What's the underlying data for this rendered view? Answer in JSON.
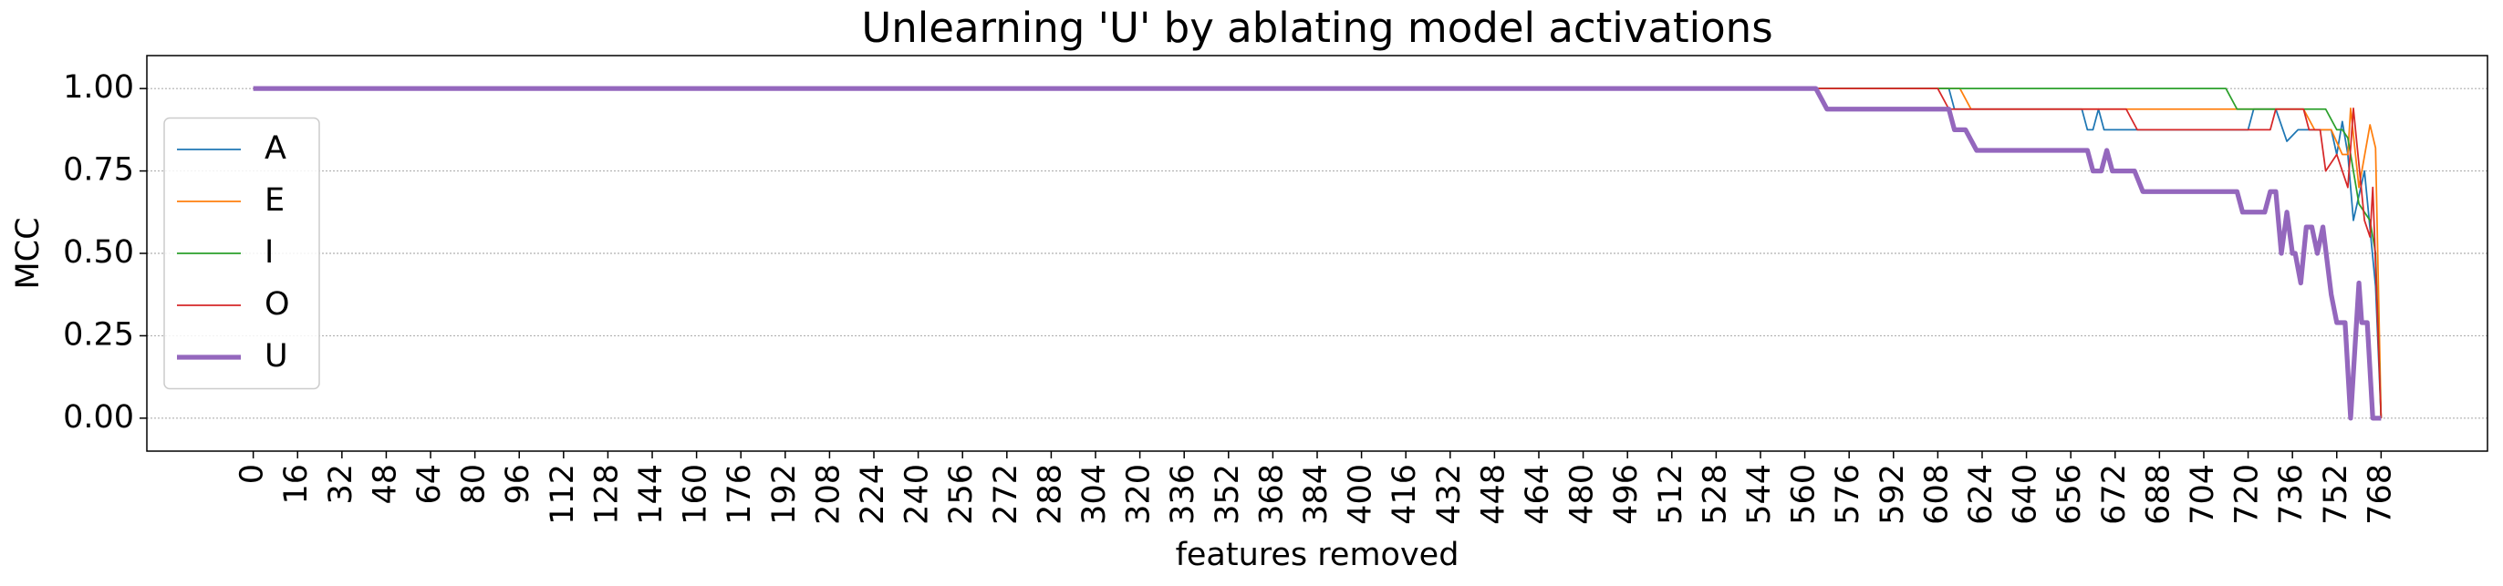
{
  "chart_data": {
    "type": "line",
    "title": "Unlearning 'U' by ablating model activations",
    "x_label": "features removed",
    "y_label": "MCC",
    "xlim": [
      -38.4,
      806.4
    ],
    "ylim": [
      -0.1,
      1.1
    ],
    "xticks": [
      0,
      16,
      32,
      48,
      64,
      80,
      96,
      112,
      128,
      144,
      160,
      176,
      192,
      208,
      224,
      240,
      256,
      272,
      288,
      304,
      320,
      336,
      352,
      368,
      384,
      400,
      416,
      432,
      448,
      464,
      480,
      496,
      512,
      528,
      544,
      560,
      576,
      592,
      608,
      624,
      640,
      656,
      672,
      688,
      704,
      720,
      736,
      752,
      768
    ],
    "yticks": [
      {
        "value": 0,
        "label": "0.00"
      },
      {
        "value": 0.25,
        "label": "0.25"
      },
      {
        "value": 0.5,
        "label": "0.50"
      },
      {
        "value": 0.75,
        "label": "0.75"
      },
      {
        "value": 1,
        "label": "1.00"
      }
    ],
    "grid": "y",
    "legend": "center left",
    "series": [
      {
        "name": "A",
        "color": "#1f77b4",
        "width": 1,
        "x": [
          0,
          612,
          614,
          660,
          662,
          664,
          666,
          668,
          720,
          722,
          730,
          734,
          738,
          750,
          752,
          754,
          756,
          758,
          762,
          766,
          768
        ],
        "values": [
          1,
          1,
          0.9375,
          0.9375,
          0.875,
          0.875,
          0.9375,
          0.875,
          0.875,
          0.9375,
          0.9375,
          0.84,
          0.875,
          0.875,
          0.8,
          0.9,
          0.8,
          0.6,
          0.75,
          0.4,
          0
        ]
      },
      {
        "name": "E",
        "color": "#ff7f0e",
        "width": 1,
        "x": [
          0,
          616,
          620,
          740,
          744,
          750,
          754,
          756,
          757,
          760,
          764,
          766,
          768
        ],
        "values": [
          1,
          1,
          0.9375,
          0.9375,
          0.875,
          0.875,
          0.8,
          0.8,
          0.94,
          0.7,
          0.89,
          0.82,
          0
        ]
      },
      {
        "name": "I",
        "color": "#2ca02c",
        "width": 1,
        "x": [
          0,
          712,
          716,
          748,
          752,
          754,
          756,
          760,
          764,
          766,
          768
        ],
        "values": [
          1,
          1,
          0.9375,
          0.9375,
          0.875,
          0.875,
          0.85,
          0.65,
          0.6,
          0.5,
          0
        ]
      },
      {
        "name": "O",
        "color": "#d62728",
        "width": 1,
        "x": [
          0,
          608,
          612,
          676,
          680,
          728,
          730,
          740,
          742,
          746,
          748,
          752,
          756,
          758,
          762,
          764,
          765,
          768
        ],
        "values": [
          1,
          1,
          0.9375,
          0.9375,
          0.875,
          0.875,
          0.9375,
          0.9375,
          0.875,
          0.875,
          0.75,
          0.8,
          0.7,
          0.94,
          0.6,
          0.55,
          0.7,
          0
        ]
      },
      {
        "name": "U",
        "color": "#9467bd",
        "width": 3,
        "x": [
          0,
          564,
          568,
          612,
          614,
          618,
          622,
          662,
          664,
          667,
          669,
          671,
          679,
          682,
          716,
          718,
          726,
          728,
          730,
          732,
          734,
          736,
          737,
          739,
          741,
          743,
          745,
          747,
          750,
          752,
          755,
          757,
          760,
          761,
          763,
          765,
          768
        ],
        "values": [
          1,
          1,
          0.9375,
          0.9375,
          0.875,
          0.875,
          0.8125,
          0.8125,
          0.75,
          0.75,
          0.8125,
          0.75,
          0.75,
          0.6875,
          0.6875,
          0.625,
          0.625,
          0.6875,
          0.6875,
          0.5,
          0.625,
          0.5,
          0.5,
          0.41,
          0.58,
          0.58,
          0.5,
          0.58,
          0.375,
          0.29,
          0.29,
          0,
          0.41,
          0.29,
          0.29,
          0,
          0
        ]
      }
    ]
  }
}
